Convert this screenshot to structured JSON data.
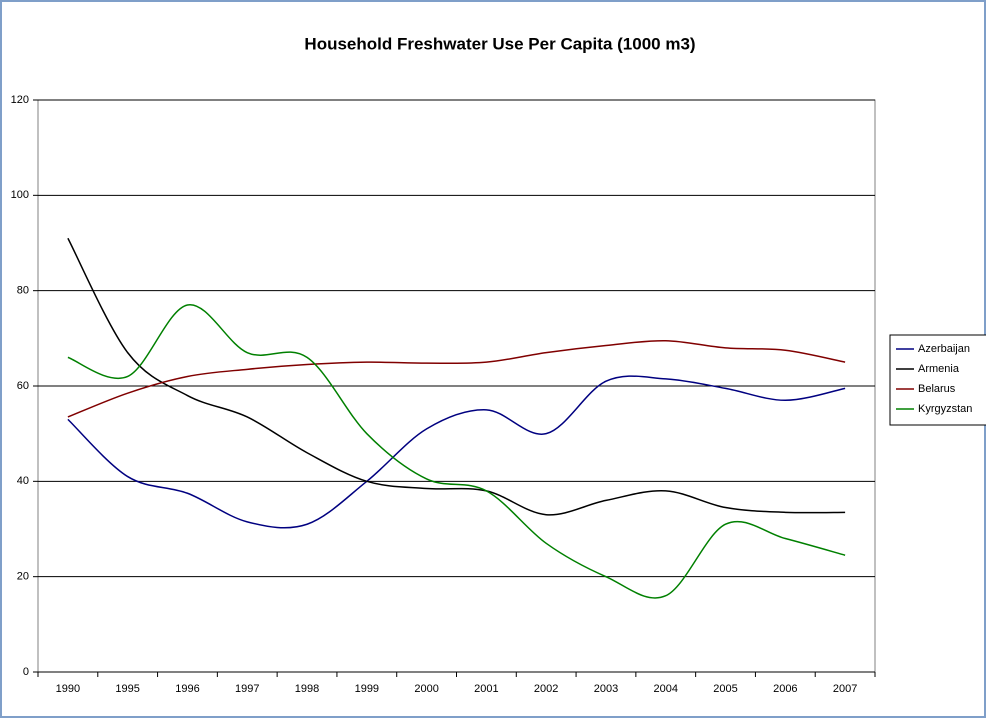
{
  "chart_data": {
    "type": "line",
    "title": "Household Freshwater Use Per Capita (1000 m3)",
    "categories": [
      "1990",
      "1995",
      "1996",
      "1997",
      "1998",
      "1999",
      "2000",
      "2001",
      "2002",
      "2003",
      "2004",
      "2005",
      "2006",
      "2007"
    ],
    "series": [
      {
        "name": "Azerbaijan",
        "color": "#000080",
        "values": [
          53,
          41,
          37.5,
          31.5,
          31,
          40,
          51,
          55,
          50,
          61,
          61.5,
          59.5,
          57,
          59.5
        ]
      },
      {
        "name": "Armenia",
        "color": "#000000",
        "values": [
          91,
          67,
          58,
          53.5,
          46,
          40,
          38.5,
          38,
          33,
          36,
          38,
          34.5,
          33.5,
          33.5
        ]
      },
      {
        "name": "Belarus",
        "color": "#800000",
        "values": [
          53.5,
          58.5,
          62,
          63.5,
          64.5,
          65,
          64.8,
          65,
          67,
          68.5,
          69.5,
          68,
          67.5,
          65
        ]
      },
      {
        "name": "Kyrgyzstan",
        "color": "#008000",
        "values": [
          66,
          62,
          77,
          67,
          66,
          50,
          40.5,
          38,
          27,
          20,
          16,
          31,
          28,
          24.5
        ]
      }
    ],
    "ylim": [
      0,
      120
    ],
    "yticks": [
      0,
      20,
      40,
      60,
      80,
      100,
      120
    ],
    "grid": true,
    "legend": "right"
  }
}
